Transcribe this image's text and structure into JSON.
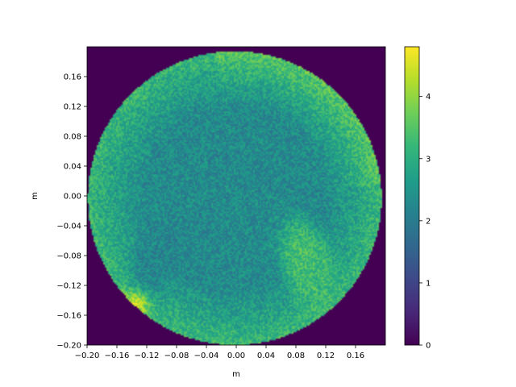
{
  "chart_data": {
    "type": "heatmap",
    "title": "",
    "xlabel": "m",
    "ylabel": "m",
    "xlim": [
      -0.2,
      0.2
    ],
    "ylim": [
      -0.2,
      0.2
    ],
    "x_ticks": [
      "−0.20",
      "−0.16",
      "−0.12",
      "−0.08",
      "−0.04",
      "0.00",
      "0.04",
      "0.08",
      "0.12",
      "0.16"
    ],
    "y_ticks": [
      "−0.20",
      "−0.16",
      "−0.12",
      "−0.08",
      "−0.04",
      "0.00",
      "0.04",
      "0.08",
      "0.12",
      "0.16"
    ],
    "colormap": "viridis",
    "colorbar": {
      "min": 0,
      "max": 4.8,
      "ticks": [
        "0",
        "1",
        "2",
        "3",
        "4"
      ]
    },
    "domain": {
      "shape": "circle",
      "center": [
        -0.002,
        -0.003
      ],
      "radius": 0.197
    },
    "background_value": 0,
    "features": [
      {
        "region": "left lobe",
        "center": [
          -0.11,
          -0.085
        ],
        "value": 2.2
      },
      {
        "region": "right lobe",
        "center": [
          0.095,
          -0.09
        ],
        "value": 3.3
      },
      {
        "region": "lower-left hot spot",
        "center": [
          -0.135,
          -0.145
        ],
        "value": 4.5
      },
      {
        "region": "interior",
        "value": 2.3
      },
      {
        "region": "rim",
        "value": 3.2
      }
    ]
  },
  "colors": {
    "viridis": [
      "#440154",
      "#482878",
      "#3e4989",
      "#31688e",
      "#26828e",
      "#1f9e89",
      "#35b779",
      "#6ece58",
      "#b5de2b",
      "#fde725"
    ]
  }
}
